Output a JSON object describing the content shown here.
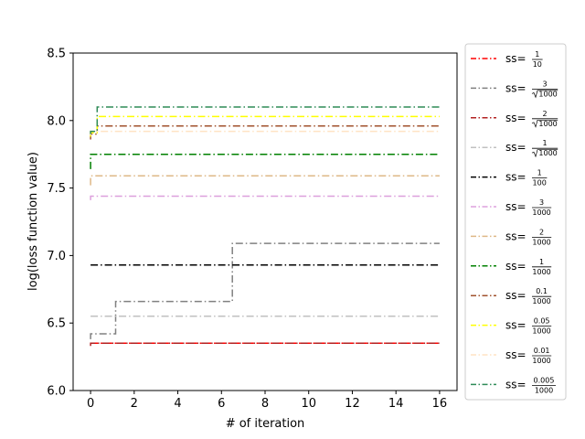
{
  "chart_data": {
    "type": "line",
    "title": "",
    "xlabel": "# of iteration",
    "ylabel": "log(loss function value)",
    "xlim": [
      -0.8,
      16.8
    ],
    "ylim": [
      6.0,
      8.5
    ],
    "xticks": [
      "0",
      "2",
      "4",
      "6",
      "8",
      "10",
      "12",
      "14",
      "16"
    ],
    "yticks": [
      "6.0",
      "6.5",
      "7.0",
      "7.5",
      "8.0",
      "8.5"
    ],
    "grid": false,
    "legend_position": "outside-right",
    "line_style": "dash-dot",
    "series": [
      {
        "name": "ss=1/10",
        "label_prefix": "ss=",
        "num": "1",
        "den": "10",
        "den_sqrt": false,
        "color": "#ff0000",
        "x": [
          0,
          16
        ],
        "y": [
          6.35,
          6.35
        ]
      },
      {
        "name": "ss=3/√1000",
        "label_prefix": "ss=",
        "num": "3",
        "den": "1000",
        "den_sqrt": true,
        "color": "#808080",
        "x": [
          0,
          0,
          1.15,
          1.15,
          6.5,
          6.5,
          16
        ],
        "y": [
          6.38,
          6.42,
          6.42,
          6.66,
          6.66,
          7.09,
          7.09
        ]
      },
      {
        "name": "ss=2/√1000",
        "label_prefix": "ss=",
        "num": "2",
        "den": "1000",
        "den_sqrt": true,
        "color": "#b22222",
        "x": [
          0,
          0,
          16
        ],
        "y": [
          6.33,
          6.35,
          6.35
        ]
      },
      {
        "name": "ss=1/√1000",
        "label_prefix": "ss=",
        "num": "1",
        "den": "1000",
        "den_sqrt": true,
        "color": "#c0c0c0",
        "x": [
          0,
          16
        ],
        "y": [
          6.55,
          6.55
        ]
      },
      {
        "name": "ss=1/100",
        "label_prefix": "ss=",
        "num": "1",
        "den": "100",
        "den_sqrt": false,
        "color": "#000000",
        "x": [
          0,
          16
        ],
        "y": [
          6.93,
          6.93
        ]
      },
      {
        "name": "ss=3/1000",
        "label_prefix": "ss=",
        "num": "3",
        "den": "1000",
        "den_sqrt": false,
        "color": "#dda0dd",
        "x": [
          0,
          0,
          16
        ],
        "y": [
          7.41,
          7.44,
          7.44
        ]
      },
      {
        "name": "ss=2/1000",
        "label_prefix": "ss=",
        "num": "2",
        "den": "1000",
        "den_sqrt": false,
        "color": "#deb887",
        "x": [
          0,
          0,
          16
        ],
        "y": [
          7.52,
          7.59,
          7.59
        ]
      },
      {
        "name": "ss=1/1000",
        "label_prefix": "ss=",
        "num": "1",
        "den": "1000",
        "den_sqrt": false,
        "color": "#008000",
        "x": [
          0,
          0,
          16
        ],
        "y": [
          7.64,
          7.75,
          7.75
        ]
      },
      {
        "name": "ss=0.1/1000",
        "label_prefix": "ss=",
        "num": "0.1",
        "den": "1000",
        "den_sqrt": false,
        "color": "#a0522d",
        "x": [
          0,
          0,
          0.3,
          0.3,
          16
        ],
        "y": [
          7.86,
          7.9,
          7.9,
          7.96,
          7.96
        ]
      },
      {
        "name": "ss=0.05/1000",
        "label_prefix": "ss=",
        "num": "0.05",
        "den": "1000",
        "den_sqrt": false,
        "color": "#ffff00",
        "x": [
          0,
          0,
          0.3,
          0.3,
          16
        ],
        "y": [
          7.88,
          7.91,
          7.91,
          8.03,
          8.03
        ]
      },
      {
        "name": "ss=0.01/1000",
        "label_prefix": "ss=",
        "num": "0.01",
        "den": "1000",
        "den_sqrt": false,
        "color": "#ffe4c4",
        "x": [
          0,
          0,
          16
        ],
        "y": [
          7.89,
          7.92,
          7.92
        ]
      },
      {
        "name": "ss=0.005/1000",
        "label_prefix": "ss=",
        "num": "0.005",
        "den": "1000",
        "den_sqrt": false,
        "color": "#2e8b57",
        "x": [
          0,
          0,
          0.3,
          0.3,
          16
        ],
        "y": [
          7.9,
          7.92,
          7.92,
          8.1,
          8.1
        ]
      }
    ]
  }
}
